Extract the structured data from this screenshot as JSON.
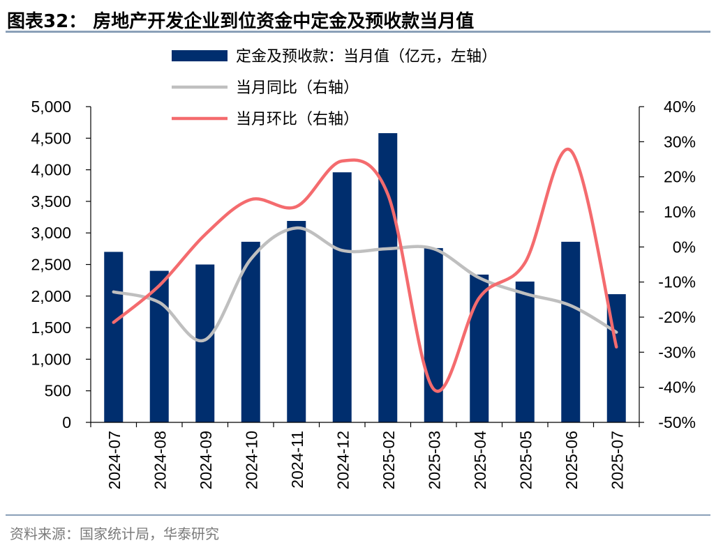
{
  "figure": {
    "title": "图表32：  房地产开发企业到位资金中定金及预收款当月值",
    "source": "资料来源：国家统计局，华泰研究"
  },
  "colors": {
    "bars": "#002e6e",
    "yoy_line": "#bfbfbf",
    "mom_line": "#f46b6e",
    "axis": "#000000",
    "rule": "#8aa0b8"
  },
  "chart_data": {
    "type": "bar",
    "categories": [
      "2024-07",
      "2024-08",
      "2024-09",
      "2024-10",
      "2024-11",
      "2024-12",
      "2025-02",
      "2025-03",
      "2025-04",
      "2025-05",
      "2025-06",
      "2025-07"
    ],
    "series": [
      {
        "name": "定金及预收款：当月值（亿元，左轴）",
        "type": "bar",
        "axis": "left",
        "values": [
          2700,
          2400,
          2500,
          2860,
          3190,
          3960,
          4580,
          2760,
          2340,
          2230,
          2860,
          2030
        ]
      },
      {
        "name": "当月同比（右轴）",
        "type": "line",
        "axis": "right",
        "values": [
          -12.8,
          -15.8,
          -26.5,
          -3.5,
          5.4,
          -1.0,
          -0.5,
          -0.5,
          -8.8,
          -13.3,
          -16.7,
          -24.3
        ]
      },
      {
        "name": "当月环比（右轴）",
        "type": "line",
        "axis": "right",
        "values": [
          -21.5,
          -11.0,
          3.5,
          13.5,
          11.5,
          24.5,
          15.0,
          -40.5,
          -14.5,
          -4.5,
          27.5,
          -28.5
        ]
      }
    ],
    "yaxis_left": {
      "min": 0,
      "max": 5000,
      "ticks": [
        "0",
        "500",
        "1,000",
        "1,500",
        "2,000",
        "2,500",
        "3,000",
        "3,500",
        "4,000",
        "4,500",
        "5,000"
      ]
    },
    "yaxis_right": {
      "min": -50,
      "max": 40,
      "ticks": [
        "-50%",
        "-40%",
        "-30%",
        "-20%",
        "-10%",
        "0%",
        "10%",
        "20%",
        "30%",
        "40%"
      ]
    },
    "grid": false,
    "legend_position": "top"
  }
}
